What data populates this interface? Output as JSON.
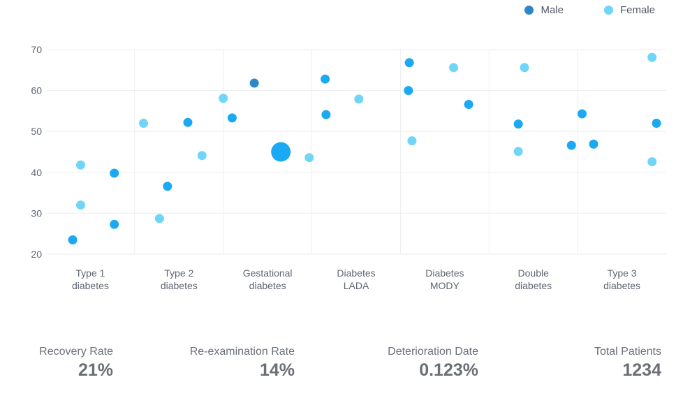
{
  "legend": {
    "male_label": "Male",
    "female_label": "Female"
  },
  "colors": {
    "male": "#2e86c7",
    "female": "#6fd6f7",
    "point": "#1ba9f3",
    "grid": "#eceef2"
  },
  "chart_data": {
    "type": "scatter",
    "title": "",
    "xlabel": "",
    "ylabel": "",
    "ylim": [
      20,
      70
    ],
    "yticks": [
      20,
      30,
      40,
      50,
      60,
      70
    ],
    "categories": [
      [
        "Type 1",
        "diabetes"
      ],
      [
        "Type 2",
        "diabetes"
      ],
      [
        "Gestational",
        "diabetes"
      ],
      [
        "Diabetes",
        "LADA"
      ],
      [
        "Diabetes",
        "MODY"
      ],
      [
        "Double",
        "diabetes"
      ],
      [
        "Type 3",
        "diabetes"
      ]
    ],
    "grid": true,
    "legend_position": "top-right",
    "series": [
      {
        "name": "Male",
        "points": [
          {
            "category": 0,
            "offset": -0.2,
            "y": 23.5
          },
          {
            "category": 0,
            "offset": 0.27,
            "y": 27.3
          },
          {
            "category": 0,
            "offset": 0.27,
            "y": 39.8
          },
          {
            "category": 1,
            "offset": -0.13,
            "y": 36.6
          },
          {
            "category": 1,
            "offset": 0.1,
            "y": 52.2
          },
          {
            "category": 2,
            "offset": -0.4,
            "y": 53.3
          },
          {
            "category": 2,
            "offset": -0.15,
            "y": 61.8,
            "shade": "dark"
          },
          {
            "category": 2,
            "offset": 0.15,
            "y": 45.0,
            "big": true
          },
          {
            "category": 3,
            "offset": -0.35,
            "y": 62.8
          },
          {
            "category": 3,
            "offset": -0.34,
            "y": 54.1
          },
          {
            "category": 4,
            "offset": -0.4,
            "y": 66.8
          },
          {
            "category": 4,
            "offset": -0.41,
            "y": 60.0
          },
          {
            "category": 4,
            "offset": 0.27,
            "y": 56.6
          },
          {
            "category": 5,
            "offset": -0.17,
            "y": 51.8
          },
          {
            "category": 5,
            "offset": 0.43,
            "y": 46.6
          },
          {
            "category": 6,
            "offset": -0.45,
            "y": 54.3
          },
          {
            "category": 6,
            "offset": -0.32,
            "y": 46.9
          },
          {
            "category": 6,
            "offset": 0.39,
            "y": 52.0
          }
        ]
      },
      {
        "name": "Female",
        "points": [
          {
            "category": 0,
            "offset": -0.11,
            "y": 41.8
          },
          {
            "category": 0,
            "offset": -0.11,
            "y": 32.0
          },
          {
            "category": 1,
            "offset": -0.4,
            "y": 52.0
          },
          {
            "category": 1,
            "offset": -0.22,
            "y": 28.7
          },
          {
            "category": 1,
            "offset": 0.26,
            "y": 44.1
          },
          {
            "category": 2,
            "offset": -0.5,
            "y": 58.1
          },
          {
            "category": 2,
            "offset": 0.47,
            "y": 43.6
          },
          {
            "category": 3,
            "offset": 0.03,
            "y": 57.9
          },
          {
            "category": 4,
            "offset": -0.37,
            "y": 47.7
          },
          {
            "category": 4,
            "offset": 0.1,
            "y": 65.6
          },
          {
            "category": 5,
            "offset": -0.17,
            "y": 45.1
          },
          {
            "category": 5,
            "offset": -0.1,
            "y": 65.6
          },
          {
            "category": 6,
            "offset": 0.34,
            "y": 68.1
          },
          {
            "category": 6,
            "offset": 0.34,
            "y": 42.6
          }
        ]
      }
    ]
  },
  "stats": [
    {
      "label": "Recovery Rate",
      "value": "21%"
    },
    {
      "label": "Re-examination Rate",
      "value": "14%"
    },
    {
      "label": "Deterioration Date",
      "value": "0.123%"
    },
    {
      "label": "Total Patients",
      "value": "1234"
    }
  ]
}
